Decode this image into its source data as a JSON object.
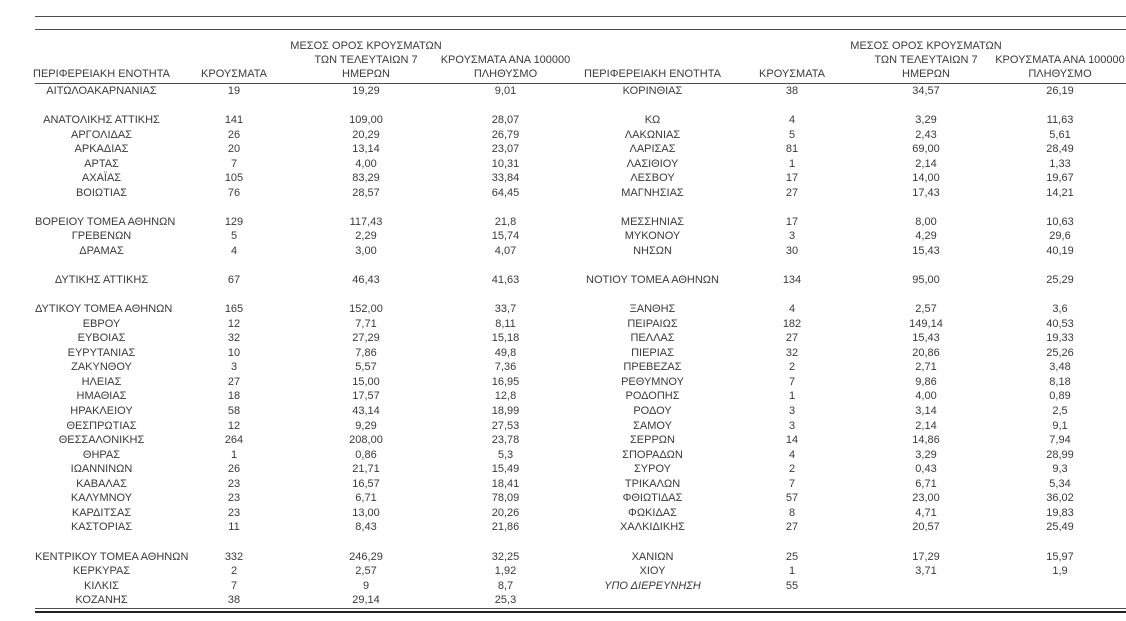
{
  "page": {
    "background": "#ffffff",
    "text_color": "#3a3a3a",
    "rule_color": "#4d4d4d",
    "thick_rule_color": "#222222"
  },
  "table": {
    "headers": {
      "region": "ΠΕΡΙΦΕΡΕΙΑΚΗ ΕΝΟΤΗΤΑ",
      "cases": "ΚΡΟΥΣΜΑΤΑ",
      "avg7": "ΜΕΣΟΣ ΟΡΟΣ ΚΡΟΥΣΜΑΤΩΝ\nΤΩΝ ΤΕΛΕΥΤΑΙΩΝ 7\nΗΜΕΡΩΝ",
      "per100k": "ΚΡΟΥΣΜΑΤΑ ΑΝΑ 100000\nΠΛΗΘΥΣΜΟ"
    },
    "italic_cells": [
      {
        "row": 34,
        "col": 4
      }
    ],
    "rows": [
      [
        "ΑΙΤΩΛΟΑΚΑΡΝΑΝΙΑΣ",
        "19",
        "19,29",
        "9,01",
        "ΚΟΡΙΝΘΙΑΣ",
        "38",
        "34,57",
        "26,19"
      ],
      [
        "",
        "",
        "",
        "",
        "",
        "",
        "",
        ""
      ],
      [
        "ΑΝΑΤΟΛΙΚΗΣ ΑΤΤΙΚΗΣ",
        "141",
        "109,00",
        "28,07",
        "ΚΩ",
        "4",
        "3,29",
        "11,63"
      ],
      [
        "ΑΡΓΟΛΙΔΑΣ",
        "26",
        "20,29",
        "26,79",
        "ΛΑΚΩΝΙΑΣ",
        "5",
        "2,43",
        "5,61"
      ],
      [
        "ΑΡΚΑΔΙΑΣ",
        "20",
        "13,14",
        "23,07",
        "ΛΑΡΙΣΑΣ",
        "81",
        "69,00",
        "28,49"
      ],
      [
        "ΑΡΤΑΣ",
        "7",
        "4,00",
        "10,31",
        "ΛΑΣΙΘΙΟΥ",
        "1",
        "2,14",
        "1,33"
      ],
      [
        "ΑΧΑΪΑΣ",
        "105",
        "83,29",
        "33,84",
        "ΛΕΣΒΟΥ",
        "17",
        "14,00",
        "19,67"
      ],
      [
        "ΒΟΙΩΤΙΑΣ",
        "76",
        "28,57",
        "64,45",
        "ΜΑΓΝΗΣΙΑΣ",
        "27",
        "17,43",
        "14,21"
      ],
      [
        "",
        "",
        "",
        "",
        "",
        "",
        "",
        ""
      ],
      [
        "ΒΟΡΕΙΟΥ ΤΟΜΕΑ ΑΘΗΝΩΝ",
        "129",
        "117,43",
        "21,8",
        "ΜΕΣΣΗΝΙΑΣ",
        "17",
        "8,00",
        "10,63"
      ],
      [
        "ΓΡΕΒΕΝΩΝ",
        "5",
        "2,29",
        "15,74",
        "ΜΥΚΟΝΟΥ",
        "3",
        "4,29",
        "29,6"
      ],
      [
        "ΔΡΑΜΑΣ",
        "4",
        "3,00",
        "4,07",
        "ΝΗΣΩΝ",
        "30",
        "15,43",
        "40,19"
      ],
      [
        "",
        "",
        "",
        "",
        "",
        "",
        "",
        ""
      ],
      [
        "ΔΥΤΙΚΗΣ ΑΤΤΙΚΗΣ",
        "67",
        "46,43",
        "41,63",
        "ΝΟΤΙΟΥ ΤΟΜΕΑ ΑΘΗΝΩΝ",
        "134",
        "95,00",
        "25,29"
      ],
      [
        "",
        "",
        "",
        "",
        "",
        "",
        "",
        ""
      ],
      [
        "ΔΥΤΙΚΟΥ ΤΟΜΕΑ ΑΘΗΝΩΝ",
        "165",
        "152,00",
        "33,7",
        "ΞΑΝΘΗΣ",
        "4",
        "2,57",
        "3,6"
      ],
      [
        "ΕΒΡΟΥ",
        "12",
        "7,71",
        "8,11",
        "ΠΕΙΡΑΙΩΣ",
        "182",
        "149,14",
        "40,53"
      ],
      [
        "ΕΥΒΟΙΑΣ",
        "32",
        "27,29",
        "15,18",
        "ΠΕΛΛΑΣ",
        "27",
        "15,43",
        "19,33"
      ],
      [
        "ΕΥΡΥΤΑΝΙΑΣ",
        "10",
        "7,86",
        "49,8",
        "ΠΙΕΡΙΑΣ",
        "32",
        "20,86",
        "25,26"
      ],
      [
        "ΖΑΚΥΝΘΟΥ",
        "3",
        "5,57",
        "7,36",
        "ΠΡΕΒΕΖΑΣ",
        "2",
        "2,71",
        "3,48"
      ],
      [
        "ΗΛΕΙΑΣ",
        "27",
        "15,00",
        "16,95",
        "ΡΕΘΥΜΝΟΥ",
        "7",
        "9,86",
        "8,18"
      ],
      [
        "ΗΜΑΘΙΑΣ",
        "18",
        "17,57",
        "12,8",
        "ΡΟΔΟΠΗΣ",
        "1",
        "4,00",
        "0,89"
      ],
      [
        "ΗΡΑΚΛΕΙΟΥ",
        "58",
        "43,14",
        "18,99",
        "ΡΟΔΟΥ",
        "3",
        "3,14",
        "2,5"
      ],
      [
        "ΘΕΣΠΡΩΤΙΑΣ",
        "12",
        "9,29",
        "27,53",
        "ΣΑΜΟΥ",
        "3",
        "2,14",
        "9,1"
      ],
      [
        "ΘΕΣΣΑΛΟΝΙΚΗΣ",
        "264",
        "208,00",
        "23,78",
        "ΣΕΡΡΩΝ",
        "14",
        "14,86",
        "7,94"
      ],
      [
        "ΘΗΡΑΣ",
        "1",
        "0,86",
        "5,3",
        "ΣΠΟΡΑΔΩΝ",
        "4",
        "3,29",
        "28,99"
      ],
      [
        "ΙΩΑΝΝΙΝΩΝ",
        "26",
        "21,71",
        "15,49",
        "ΣΥΡΟΥ",
        "2",
        "0,43",
        "9,3"
      ],
      [
        "ΚΑΒΑΛΑΣ",
        "23",
        "16,57",
        "18,41",
        "ΤΡΙΚΑΛΩΝ",
        "7",
        "6,71",
        "5,34"
      ],
      [
        "ΚΑΛΥΜΝΟΥ",
        "23",
        "6,71",
        "78,09",
        "ΦΘΙΩΤΙΔΑΣ",
        "57",
        "23,00",
        "36,02"
      ],
      [
        "ΚΑΡΔΙΤΣΑΣ",
        "23",
        "13,00",
        "20,26",
        "ΦΩΚΙΔΑΣ",
        "8",
        "4,71",
        "19,83"
      ],
      [
        "ΚΑΣΤΟΡΙΑΣ",
        "11",
        "8,43",
        "21,86",
        "ΧΑΛΚΙΔΙΚΗΣ",
        "27",
        "20,57",
        "25,49"
      ],
      [
        "",
        "",
        "",
        "",
        "",
        "",
        "",
        ""
      ],
      [
        "ΚΕΝΤΡΙΚΟΥ ΤΟΜΕΑ ΑΘΗΝΩΝ",
        "332",
        "246,29",
        "32,25",
        "ΧΑΝΙΩΝ",
        "25",
        "17,29",
        "15,97"
      ],
      [
        "ΚΕΡΚΥΡΑΣ",
        "2",
        "2,57",
        "1,92",
        "ΧΙΟΥ",
        "1",
        "3,71",
        "1,9"
      ],
      [
        "ΚΙΛΚΙΣ",
        "7",
        "9",
        "8,7",
        "ΥΠΟ ΔΙΕΡΕΥΝΗΣΗ",
        "55",
        "",
        ""
      ],
      [
        "ΚΟΖΑΝΗΣ",
        "38",
        "29,14",
        "25,3",
        "",
        "",
        "",
        ""
      ]
    ]
  }
}
